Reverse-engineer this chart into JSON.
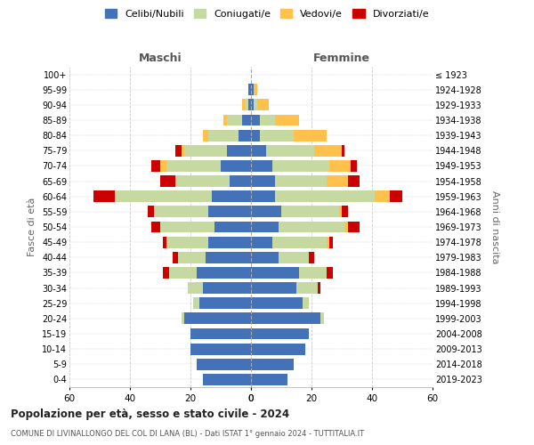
{
  "age_groups": [
    "0-4",
    "5-9",
    "10-14",
    "15-19",
    "20-24",
    "25-29",
    "30-34",
    "35-39",
    "40-44",
    "45-49",
    "50-54",
    "55-59",
    "60-64",
    "65-69",
    "70-74",
    "75-79",
    "80-84",
    "85-89",
    "90-94",
    "95-99",
    "100+"
  ],
  "birth_years": [
    "2019-2023",
    "2014-2018",
    "2009-2013",
    "2004-2008",
    "1999-2003",
    "1994-1998",
    "1989-1993",
    "1984-1988",
    "1979-1983",
    "1974-1978",
    "1969-1973",
    "1964-1968",
    "1959-1963",
    "1954-1958",
    "1949-1953",
    "1944-1948",
    "1939-1943",
    "1934-1938",
    "1929-1933",
    "1924-1928",
    "≤ 1923"
  ],
  "colors": {
    "celibe": "#4472b8",
    "coniugato": "#c5d9a0",
    "vedovo": "#ffc04c",
    "divorziato": "#cc0000"
  },
  "maschi": {
    "celibe": [
      16,
      18,
      20,
      20,
      22,
      17,
      16,
      18,
      15,
      14,
      12,
      14,
      13,
      7,
      10,
      8,
      4,
      3,
      1,
      1,
      0
    ],
    "coniugato": [
      0,
      0,
      0,
      0,
      1,
      2,
      5,
      9,
      9,
      14,
      18,
      18,
      32,
      18,
      18,
      14,
      10,
      5,
      1,
      0,
      0
    ],
    "vedovo": [
      0,
      0,
      0,
      0,
      0,
      0,
      0,
      0,
      0,
      0,
      0,
      0,
      0,
      0,
      2,
      1,
      2,
      1,
      1,
      0,
      0
    ],
    "divorziato": [
      0,
      0,
      0,
      0,
      0,
      0,
      0,
      2,
      2,
      1,
      3,
      2,
      7,
      5,
      3,
      2,
      0,
      0,
      0,
      0,
      0
    ]
  },
  "femmine": {
    "nubile": [
      12,
      14,
      18,
      19,
      23,
      17,
      15,
      16,
      9,
      7,
      9,
      10,
      8,
      8,
      7,
      5,
      3,
      3,
      1,
      1,
      0
    ],
    "coniugata": [
      0,
      0,
      0,
      0,
      1,
      2,
      7,
      9,
      10,
      18,
      22,
      19,
      33,
      17,
      19,
      16,
      11,
      5,
      1,
      0,
      0
    ],
    "vedova": [
      0,
      0,
      0,
      0,
      0,
      0,
      0,
      0,
      0,
      1,
      1,
      1,
      5,
      7,
      7,
      9,
      11,
      8,
      4,
      1,
      0
    ],
    "divorziata": [
      0,
      0,
      0,
      0,
      0,
      0,
      1,
      2,
      2,
      1,
      4,
      2,
      4,
      4,
      2,
      1,
      0,
      0,
      0,
      0,
      0
    ]
  },
  "xlim": 60,
  "title": "Popolazione per età, sesso e stato civile - 2024",
  "subtitle": "COMUNE DI LIVINALLONGO DEL COL DI LANA (BL) - Dati ISTAT 1° gennaio 2024 - TUTTITALIA.IT",
  "ylabel_left": "Fasce di età",
  "ylabel_right": "Anni di nascita",
  "xlabel_maschi": "Maschi",
  "xlabel_femmine": "Femmine",
  "legend_labels": [
    "Celibi/Nubili",
    "Coniugati/e",
    "Vedovi/e",
    "Divorziati/e"
  ],
  "bg_color": "#ffffff",
  "grid_color": "#cccccc"
}
